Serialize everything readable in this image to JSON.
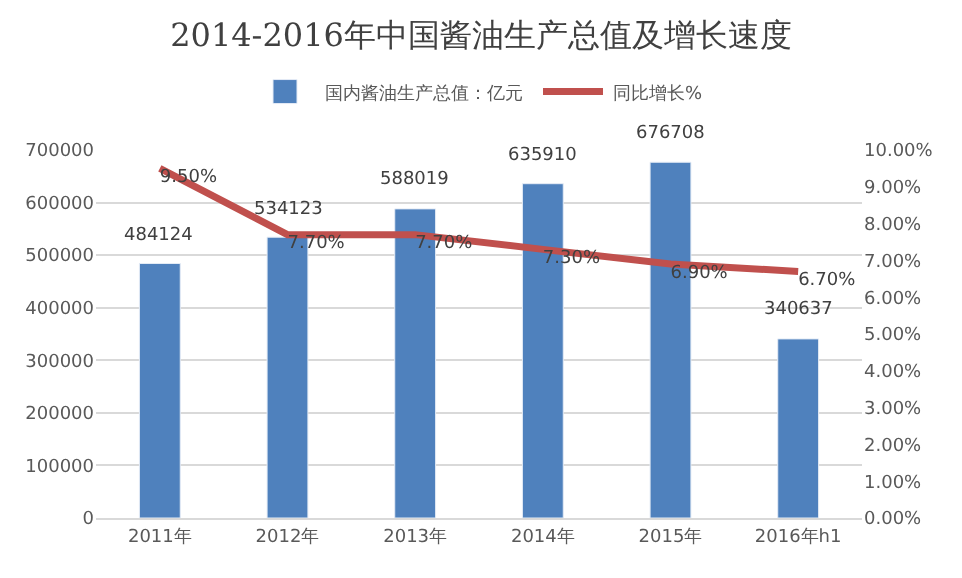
{
  "chart_data": {
    "type": "bar",
    "title": "2014-2016年中国酱油生产总值及增长速度",
    "categories": [
      "2011年",
      "2012年",
      "2013年",
      "2014年",
      "2015年",
      "2016年h1"
    ],
    "series": [
      {
        "name": "国内酱油生产总值：亿元",
        "color": "#4f81bd",
        "values": [
          484124,
          534123,
          588019,
          635910,
          676708,
          340637
        ],
        "value_labels": [
          "484124",
          "534123",
          "588019",
          "635910",
          "676708",
          "340637"
        ]
      },
      {
        "name": "同比增长%",
        "type": "line",
        "axis": "y2",
        "color": "#c0504d",
        "values": [
          9.5,
          7.7,
          7.7,
          7.3,
          6.9,
          6.7
        ],
        "value_labels": [
          "9.50%",
          "7.70%",
          "7.70%",
          "7.30%",
          "6.90%",
          "6.70%"
        ]
      }
    ],
    "ylim": [
      0,
      700000
    ],
    "yticks": [
      0,
      100000,
      200000,
      300000,
      400000,
      500000,
      600000,
      700000
    ],
    "y2lim": [
      0,
      10
    ],
    "y2ticks": [
      {
        "value": 0,
        "label": "0.00%"
      },
      {
        "value": 1,
        "label": "1.00%"
      },
      {
        "value": 2,
        "label": "2.00%"
      },
      {
        "value": 3,
        "label": "3.00%"
      },
      {
        "value": 4,
        "label": "4.00%"
      },
      {
        "value": 5,
        "label": "5.00%"
      },
      {
        "value": 6,
        "label": "6.00%"
      },
      {
        "value": 7,
        "label": "7.00%"
      },
      {
        "value": 8,
        "label": "8.00%"
      },
      {
        "value": 9,
        "label": "9.00%"
      },
      {
        "value": 10,
        "label": "10.00%"
      }
    ],
    "grid": "y",
    "legend": "top",
    "marker": "none",
    "line_style": "solid"
  }
}
